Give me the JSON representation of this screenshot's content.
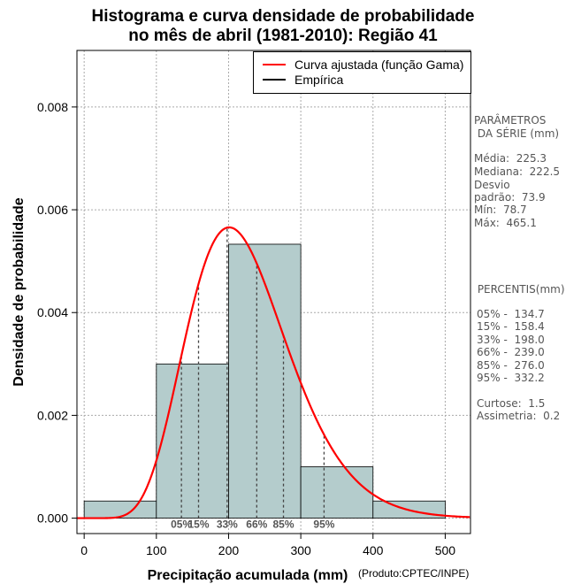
{
  "chart_data": {
    "type": "histogram",
    "title_line1": "Histograma e curva densidade de probabilidade",
    "title_line2": "no mês de abril (1981-2010): Região 41",
    "xlabel": "Precipitação acumulada (mm)",
    "ylabel": "Densidade de probabilidade",
    "credit": "(Produto:CPTEC/INPE)",
    "xlim": [
      -10,
      535
    ],
    "ylim": [
      -0.0003,
      0.0091
    ],
    "x_ticks": [
      0,
      100,
      200,
      300,
      400,
      500
    ],
    "y_ticks": [
      0.0,
      0.002,
      0.004,
      0.006,
      0.008
    ],
    "y_tick_labels": [
      "0.000",
      "0.002",
      "0.004",
      "0.006",
      "0.008"
    ],
    "bins": [
      {
        "from": 0,
        "to": 100,
        "density": 0.000333
      },
      {
        "from": 100,
        "to": 200,
        "density": 0.003
      },
      {
        "from": 200,
        "to": 300,
        "density": 0.00533
      },
      {
        "from": 300,
        "to": 400,
        "density": 0.001
      },
      {
        "from": 400,
        "to": 500,
        "density": 0.000333
      }
    ],
    "gamma_fit": {
      "shape": 9.28,
      "scale": 24.26
    },
    "percentiles": [
      {
        "label": "05%",
        "value": 134.7
      },
      {
        "label": "15%",
        "value": 158.4
      },
      {
        "label": "33%",
        "value": 198.0
      },
      {
        "label": "66%",
        "value": 239.0
      },
      {
        "label": "85%",
        "value": 276.0
      },
      {
        "label": "95%",
        "value": 332.2
      }
    ],
    "legend": [
      {
        "label": "Curva ajustada (função Gama)",
        "color": "#ff0000"
      },
      {
        "label": "Empírica",
        "color": "#000000"
      }
    ],
    "colors": {
      "bar_fill": "#b4cccc",
      "curve": "#ff0000",
      "grid": "#aaaaaa"
    }
  },
  "stats_panel": {
    "header1": "PARÂMETROS",
    "header2": " DA SÉRIE (mm)",
    "media": "Média:  225.3",
    "mediana": "Mediana:  222.5",
    "desvio1": "Desvio",
    "desvio2": "padrão:  73.9",
    "min": "Mín:  78.7",
    "max": "Máx:  465.1",
    "pct_header": " PERCENTIS(mm)",
    "p05": "05% -  134.7",
    "p15": "15% -  158.4",
    "p33": "33% -  198.0",
    "p66": "66% -  239.0",
    "p85": "85% -  276.0",
    "p95": "95% -  332.2",
    "curtose": "Curtose:  1.5",
    "assimetria": "Assimetria:  0.2"
  }
}
